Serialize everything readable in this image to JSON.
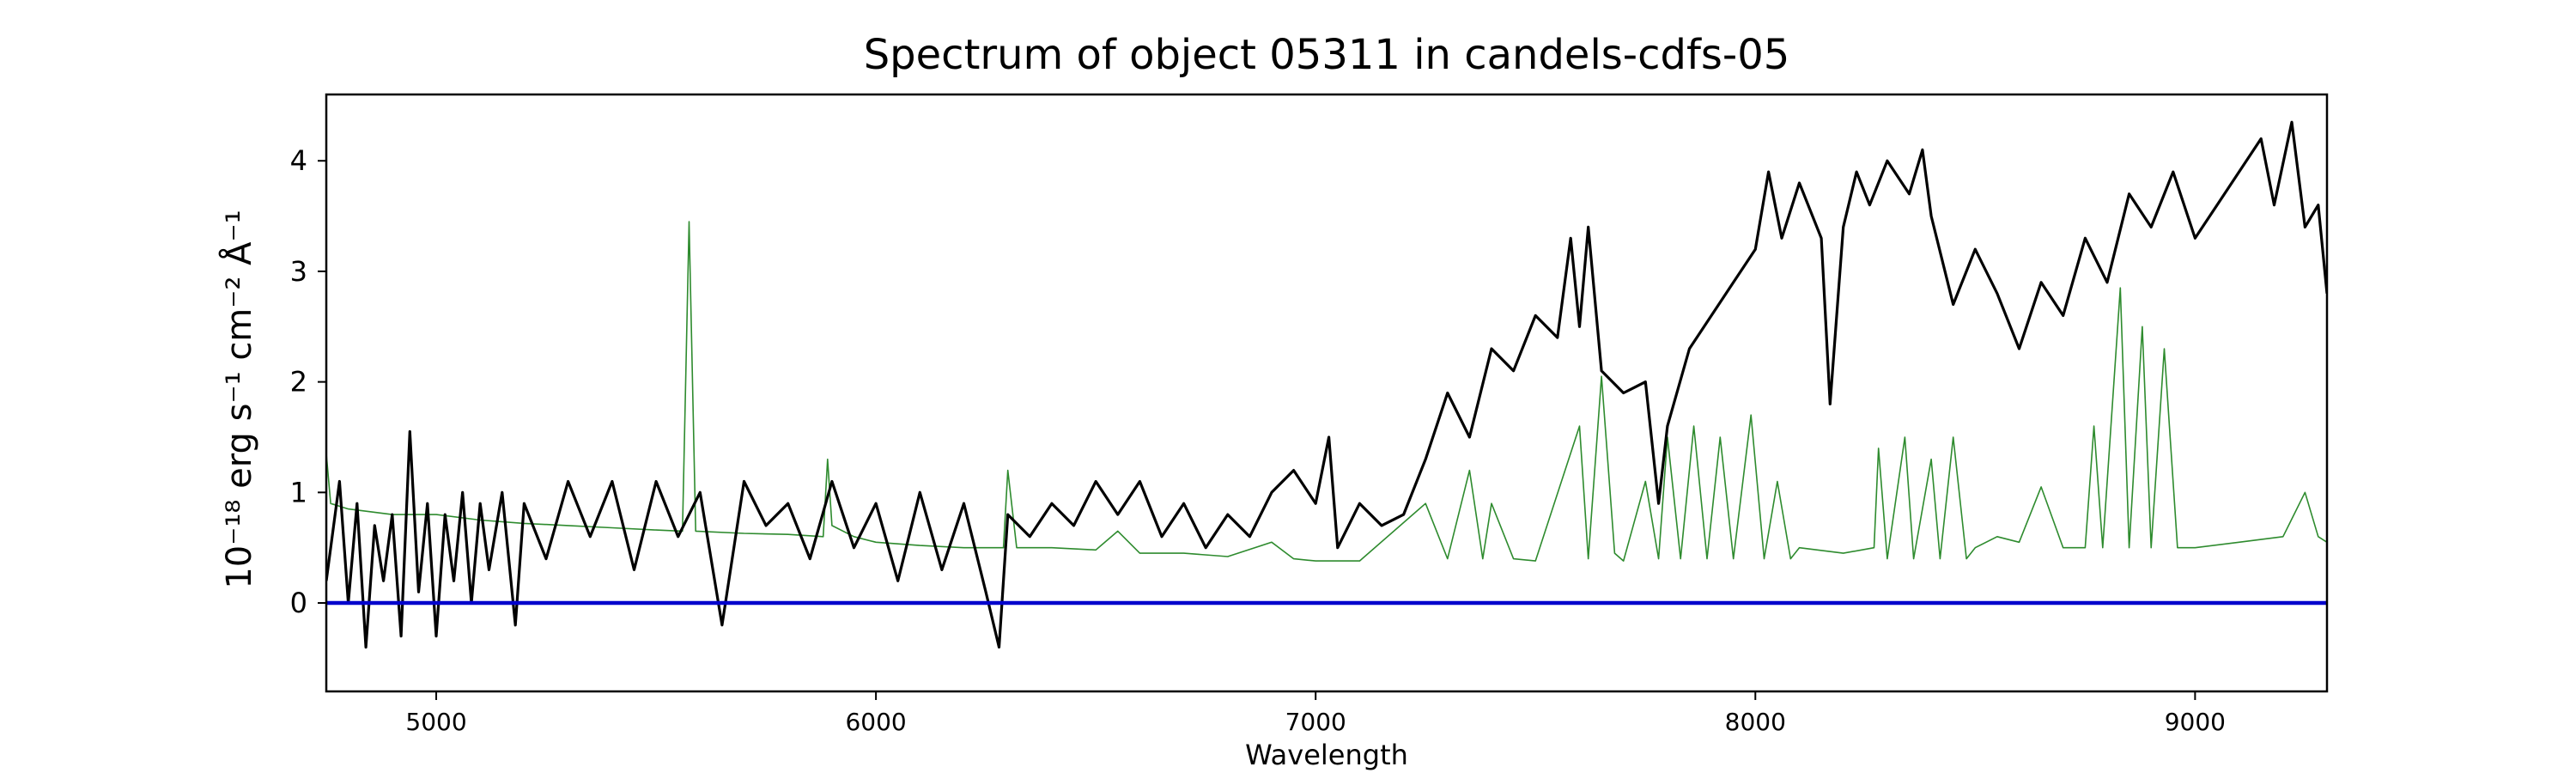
{
  "chart_data": {
    "type": "line",
    "title": "Spectrum of object 05311 in candels-cdfs-05",
    "xlabel": "Wavelength",
    "ylabel": "10⁻¹⁸ erg s⁻¹ cm⁻² Å⁻¹",
    "xlim": [
      4750,
      9300
    ],
    "ylim": [
      -0.8,
      4.6
    ],
    "xticks": [
      5000,
      6000,
      7000,
      8000,
      9000
    ],
    "yticks": [
      0,
      1,
      2,
      3,
      4
    ],
    "grid": false,
    "series": [
      {
        "color": "#000000",
        "points": [
          [
            4750,
            0.2
          ],
          [
            4780,
            1.1
          ],
          [
            4800,
            0.0
          ],
          [
            4820,
            0.9
          ],
          [
            4840,
            -0.4
          ],
          [
            4860,
            0.7
          ],
          [
            4880,
            0.2
          ],
          [
            4900,
            0.8
          ],
          [
            4920,
            -0.3
          ],
          [
            4940,
            1.55
          ],
          [
            4960,
            0.1
          ],
          [
            4980,
            0.9
          ],
          [
            5000,
            -0.3
          ],
          [
            5020,
            0.8
          ],
          [
            5040,
            0.2
          ],
          [
            5060,
            1.0
          ],
          [
            5080,
            0.0
          ],
          [
            5100,
            0.9
          ],
          [
            5120,
            0.3
          ],
          [
            5150,
            1.0
          ],
          [
            5180,
            -0.2
          ],
          [
            5200,
            0.9
          ],
          [
            5250,
            0.4
          ],
          [
            5300,
            1.1
          ],
          [
            5350,
            0.6
          ],
          [
            5400,
            1.1
          ],
          [
            5450,
            0.3
          ],
          [
            5500,
            1.1
          ],
          [
            5550,
            0.6
          ],
          [
            5600,
            1.0
          ],
          [
            5650,
            -0.2
          ],
          [
            5700,
            1.1
          ],
          [
            5750,
            0.7
          ],
          [
            5800,
            0.9
          ],
          [
            5850,
            0.4
          ],
          [
            5900,
            1.1
          ],
          [
            5950,
            0.5
          ],
          [
            6000,
            0.9
          ],
          [
            6050,
            0.2
          ],
          [
            6100,
            1.0
          ],
          [
            6150,
            0.3
          ],
          [
            6200,
            0.9
          ],
          [
            6250,
            0.1
          ],
          [
            6280,
            -0.4
          ],
          [
            6300,
            0.8
          ],
          [
            6350,
            0.6
          ],
          [
            6400,
            0.9
          ],
          [
            6450,
            0.7
          ],
          [
            6500,
            1.1
          ],
          [
            6550,
            0.8
          ],
          [
            6600,
            1.1
          ],
          [
            6650,
            0.6
          ],
          [
            6700,
            0.9
          ],
          [
            6750,
            0.5
          ],
          [
            6800,
            0.8
          ],
          [
            6850,
            0.6
          ],
          [
            6900,
            1.0
          ],
          [
            6950,
            1.2
          ],
          [
            7000,
            0.9
          ],
          [
            7030,
            1.5
          ],
          [
            7050,
            0.5
          ],
          [
            7100,
            0.9
          ],
          [
            7150,
            0.7
          ],
          [
            7200,
            0.8
          ],
          [
            7250,
            1.3
          ],
          [
            7300,
            1.9
          ],
          [
            7350,
            1.5
          ],
          [
            7400,
            2.3
          ],
          [
            7450,
            2.1
          ],
          [
            7500,
            2.6
          ],
          [
            7550,
            2.4
          ],
          [
            7580,
            3.3
          ],
          [
            7600,
            2.5
          ],
          [
            7620,
            3.4
          ],
          [
            7650,
            2.1
          ],
          [
            7700,
            1.9
          ],
          [
            7750,
            2.0
          ],
          [
            7780,
            0.9
          ],
          [
            7800,
            1.6
          ],
          [
            7850,
            2.3
          ],
          [
            7900,
            2.6
          ],
          [
            7950,
            2.9
          ],
          [
            8000,
            3.2
          ],
          [
            8030,
            3.9
          ],
          [
            8060,
            3.3
          ],
          [
            8100,
            3.8
          ],
          [
            8150,
            3.3
          ],
          [
            8170,
            1.8
          ],
          [
            8200,
            3.4
          ],
          [
            8230,
            3.9
          ],
          [
            8260,
            3.6
          ],
          [
            8300,
            4.0
          ],
          [
            8350,
            3.7
          ],
          [
            8380,
            4.1
          ],
          [
            8400,
            3.5
          ],
          [
            8450,
            2.7
          ],
          [
            8500,
            3.2
          ],
          [
            8550,
            2.8
          ],
          [
            8600,
            2.3
          ],
          [
            8650,
            2.9
          ],
          [
            8700,
            2.6
          ],
          [
            8750,
            3.3
          ],
          [
            8800,
            2.9
          ],
          [
            8850,
            3.7
          ],
          [
            8900,
            3.4
          ],
          [
            8950,
            3.9
          ],
          [
            9000,
            3.3
          ],
          [
            9050,
            3.6
          ],
          [
            9100,
            3.9
          ],
          [
            9150,
            4.2
          ],
          [
            9180,
            3.6
          ],
          [
            9220,
            4.35
          ],
          [
            9250,
            3.4
          ],
          [
            9280,
            3.6
          ],
          [
            9300,
            2.8
          ]
        ]
      },
      {
        "color": "#2e8b2e",
        "points": [
          [
            4750,
            1.35
          ],
          [
            4760,
            0.9
          ],
          [
            4800,
            0.85
          ],
          [
            4900,
            0.8
          ],
          [
            5000,
            0.8
          ],
          [
            5100,
            0.75
          ],
          [
            5200,
            0.72
          ],
          [
            5300,
            0.7
          ],
          [
            5400,
            0.68
          ],
          [
            5500,
            0.66
          ],
          [
            5560,
            0.65
          ],
          [
            5575,
            3.45
          ],
          [
            5590,
            0.65
          ],
          [
            5700,
            0.63
          ],
          [
            5800,
            0.62
          ],
          [
            5880,
            0.6
          ],
          [
            5890,
            1.3
          ],
          [
            5900,
            0.7
          ],
          [
            5950,
            0.6
          ],
          [
            6000,
            0.55
          ],
          [
            6100,
            0.52
          ],
          [
            6200,
            0.5
          ],
          [
            6290,
            0.5
          ],
          [
            6300,
            1.2
          ],
          [
            6320,
            0.5
          ],
          [
            6400,
            0.5
          ],
          [
            6500,
            0.48
          ],
          [
            6550,
            0.65
          ],
          [
            6600,
            0.45
          ],
          [
            6700,
            0.45
          ],
          [
            6800,
            0.42
          ],
          [
            6900,
            0.55
          ],
          [
            6950,
            0.4
          ],
          [
            7000,
            0.38
          ],
          [
            7100,
            0.38
          ],
          [
            7250,
            0.9
          ],
          [
            7300,
            0.4
          ],
          [
            7350,
            1.2
          ],
          [
            7380,
            0.4
          ],
          [
            7400,
            0.9
          ],
          [
            7450,
            0.4
          ],
          [
            7500,
            0.38
          ],
          [
            7600,
            1.6
          ],
          [
            7620,
            0.4
          ],
          [
            7650,
            2.05
          ],
          [
            7680,
            0.45
          ],
          [
            7700,
            0.38
          ],
          [
            7750,
            1.1
          ],
          [
            7780,
            0.4
          ],
          [
            7800,
            1.5
          ],
          [
            7830,
            0.4
          ],
          [
            7860,
            1.6
          ],
          [
            7890,
            0.4
          ],
          [
            7920,
            1.5
          ],
          [
            7950,
            0.4
          ],
          [
            7990,
            1.7
          ],
          [
            8020,
            0.4
          ],
          [
            8050,
            1.1
          ],
          [
            8080,
            0.4
          ],
          [
            8100,
            0.5
          ],
          [
            8200,
            0.45
          ],
          [
            8270,
            0.5
          ],
          [
            8280,
            1.4
          ],
          [
            8300,
            0.4
          ],
          [
            8340,
            1.5
          ],
          [
            8360,
            0.4
          ],
          [
            8400,
            1.3
          ],
          [
            8420,
            0.4
          ],
          [
            8450,
            1.5
          ],
          [
            8480,
            0.4
          ],
          [
            8500,
            0.5
          ],
          [
            8550,
            0.6
          ],
          [
            8600,
            0.55
          ],
          [
            8650,
            1.05
          ],
          [
            8700,
            0.5
          ],
          [
            8750,
            0.5
          ],
          [
            8770,
            1.6
          ],
          [
            8790,
            0.5
          ],
          [
            8830,
            2.85
          ],
          [
            8850,
            0.5
          ],
          [
            8880,
            2.5
          ],
          [
            8900,
            0.5
          ],
          [
            8930,
            2.3
          ],
          [
            8960,
            0.5
          ],
          [
            9000,
            0.5
          ],
          [
            9100,
            0.55
          ],
          [
            9200,
            0.6
          ],
          [
            9250,
            1.0
          ],
          [
            9280,
            0.6
          ],
          [
            9300,
            0.55
          ]
        ]
      },
      {
        "color": "#0000cc",
        "points": [
          [
            4750,
            0
          ],
          [
            9300,
            0
          ]
        ]
      }
    ]
  }
}
